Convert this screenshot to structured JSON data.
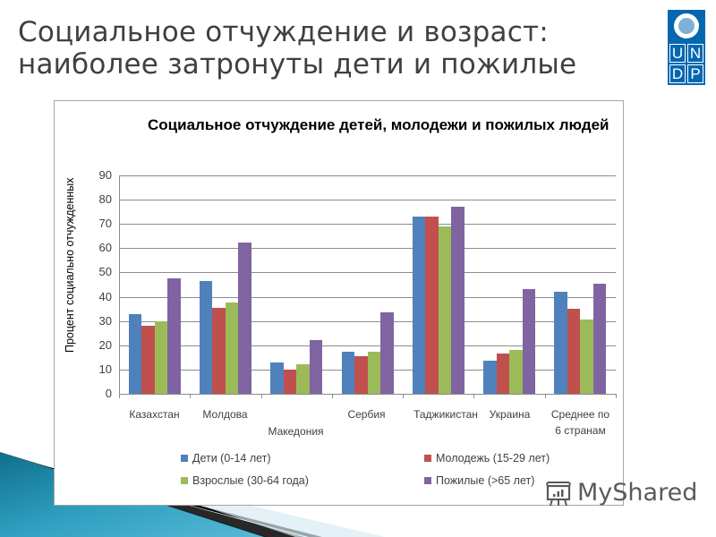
{
  "slide": {
    "title_line1": "Социальное отчуждение и возраст:",
    "title_line2": "наиболее затронуты дети и пожилые",
    "logo": {
      "letters": [
        "U",
        "N",
        "D",
        "P"
      ],
      "color": "#0468B1"
    },
    "watermark": "MyShared"
  },
  "chart_data": {
    "type": "bar",
    "title": "Социальное отчуждение детей, молодежи и пожилых людей",
    "xlabel": "",
    "ylabel": "Процент социально отчужденных",
    "ylim": [
      0,
      90
    ],
    "yticks": [
      0,
      10,
      20,
      30,
      40,
      50,
      60,
      70,
      80,
      90
    ],
    "grid": true,
    "legend_position": "bottom",
    "categories": [
      "Казахстан",
      "Молдова",
      "Македония",
      "Сербия",
      "Таджикистан",
      "Украина",
      "Среднее по 6 странам"
    ],
    "series": [
      {
        "name": "Дети (0-14 лет)",
        "color": "#4F81BD",
        "values": [
          33,
          46.5,
          13,
          17.5,
          73,
          13.5,
          42
        ]
      },
      {
        "name": "Молодежь (15-29 лет)",
        "color": "#C0504D",
        "values": [
          28,
          35.5,
          10,
          15.5,
          73,
          16.5,
          35
        ]
      },
      {
        "name": "Взрослые (30-64 года)",
        "color": "#9BBB59",
        "values": [
          30,
          37.5,
          12,
          17.5,
          69,
          18,
          30.5
        ]
      },
      {
        "name": "Пожилые (>65 лет)",
        "color": "#8064A2",
        "values": [
          47.5,
          62.5,
          22,
          33.5,
          77,
          43,
          45.5
        ]
      }
    ]
  },
  "xlabels": {
    "l0": "Казахстан",
    "l1": "Молдова",
    "l2": "Македония",
    "l3": "Сербия",
    "l4": "Таджикистан",
    "l5": "Украина",
    "l6a": "Среднее по",
    "l6b": "6 странам"
  }
}
